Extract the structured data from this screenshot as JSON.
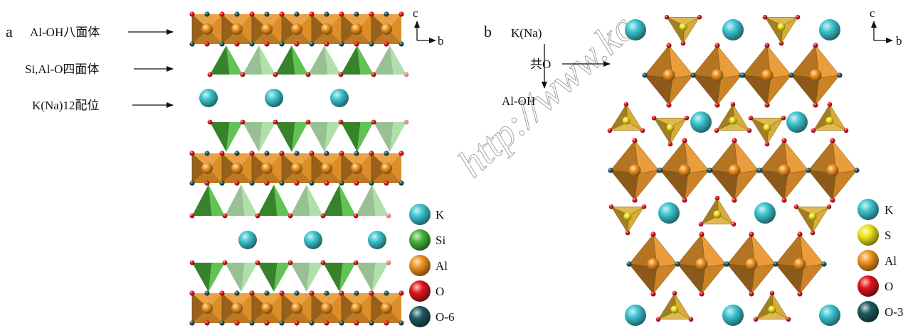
{
  "panel_a": {
    "label": "a",
    "annotations": {
      "octahedron": "Al-OH八面体",
      "tetrahedron": "Si,Al-O四面体",
      "interlayer": "K(Na)12配位"
    },
    "axes": {
      "vertical": "c",
      "horizontal": "b"
    },
    "legend": [
      {
        "label": "K",
        "color": "#3cc4cf"
      },
      {
        "label": "Si",
        "color": "#45b53a"
      },
      {
        "label": "Al",
        "color": "#ef9420"
      },
      {
        "label": "O",
        "color": "#e0161b"
      },
      {
        "label": "O-6",
        "color": "#1c5a5e"
      }
    ]
  },
  "panel_b": {
    "label": "b",
    "annotations": {
      "cation": "K(Na)",
      "shared_oxygen": "共O",
      "hydroxyl": "Al-OH"
    },
    "axes": {
      "vertical": "c",
      "horizontal": "b"
    },
    "legend": [
      {
        "label": "K",
        "color": "#3cc4cf"
      },
      {
        "label": "S",
        "color": "#ece31b"
      },
      {
        "label": "Al",
        "color": "#ef9420"
      },
      {
        "label": "O",
        "color": "#e0161b"
      },
      {
        "label": "O-3",
        "color": "#1c5a5e"
      }
    ]
  },
  "colors": {
    "faces": {
      "octahedron": "#e8952a",
      "tetrahedron_a": "#4dbb3e",
      "tetrahedron_b": "#d8a82c"
    }
  },
  "watermark": "http://www.kc"
}
